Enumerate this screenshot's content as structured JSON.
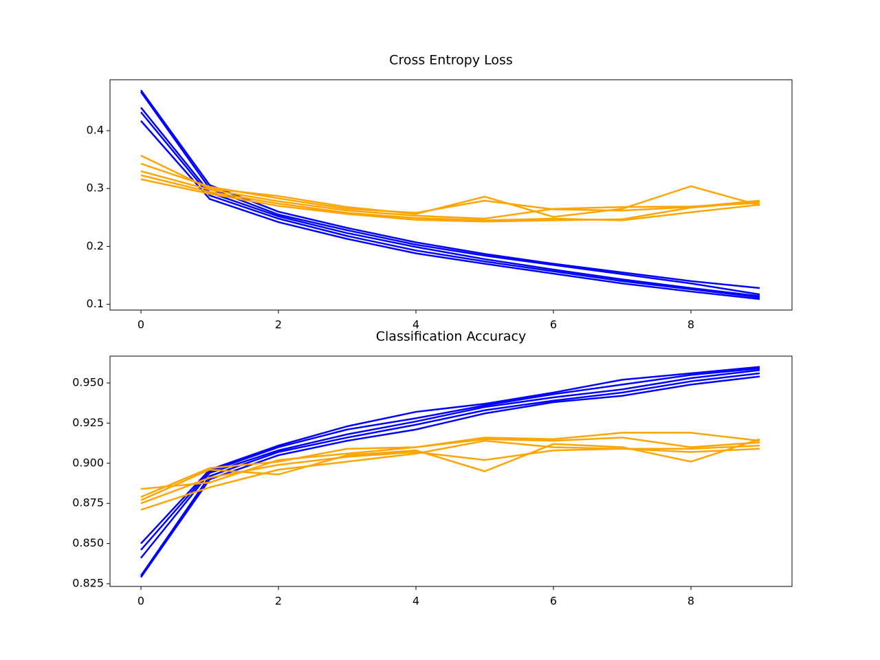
{
  "chart_data": [
    {
      "type": "line",
      "title": "Cross Entropy Loss",
      "x": [
        0,
        1,
        2,
        3,
        4,
        5,
        6,
        7,
        8,
        9
      ],
      "xlim": [
        -0.45,
        9.47
      ],
      "xticks": [
        0,
        2,
        4,
        6,
        8
      ],
      "ylim": [
        0.09,
        0.488
      ],
      "yticks": [
        0.1,
        0.2,
        0.3,
        0.4
      ],
      "series": [
        {
          "color": "#0000ff",
          "values": [
            0.47,
            0.306,
            0.26,
            0.232,
            0.207,
            0.187,
            0.17,
            0.155,
            0.14,
            0.128
          ]
        },
        {
          "color": "#0000ff",
          "values": [
            0.467,
            0.3,
            0.255,
            0.228,
            0.203,
            0.184,
            0.168,
            0.152,
            0.136,
            0.117
          ]
        },
        {
          "color": "#0000ff",
          "values": [
            0.44,
            0.293,
            0.252,
            0.223,
            0.199,
            0.178,
            0.16,
            0.143,
            0.128,
            0.114
          ]
        },
        {
          "color": "#0000ff",
          "values": [
            0.432,
            0.288,
            0.248,
            0.218,
            0.193,
            0.174,
            0.157,
            0.14,
            0.126,
            0.112
          ]
        },
        {
          "color": "#0000ff",
          "values": [
            0.417,
            0.282,
            0.242,
            0.213,
            0.188,
            0.17,
            0.153,
            0.136,
            0.122,
            0.109
          ]
        },
        {
          "color": "#ffa500",
          "values": [
            0.357,
            0.3,
            0.287,
            0.268,
            0.256,
            0.286,
            0.251,
            0.265,
            0.304,
            0.271
          ]
        },
        {
          "color": "#ffa500",
          "values": [
            0.343,
            0.303,
            0.283,
            0.265,
            0.258,
            0.279,
            0.264,
            0.262,
            0.268,
            0.279
          ]
        },
        {
          "color": "#ffa500",
          "values": [
            0.33,
            0.298,
            0.278,
            0.262,
            0.253,
            0.248,
            0.265,
            0.268,
            0.269,
            0.275
          ]
        },
        {
          "color": "#ffa500",
          "values": [
            0.323,
            0.294,
            0.274,
            0.258,
            0.249,
            0.245,
            0.248,
            0.245,
            0.259,
            0.272
          ]
        },
        {
          "color": "#ffa500",
          "values": [
            0.316,
            0.291,
            0.27,
            0.256,
            0.246,
            0.243,
            0.245,
            0.247,
            0.267,
            0.277
          ]
        }
      ]
    },
    {
      "type": "line",
      "title": "Classification Accuracy",
      "x": [
        0,
        1,
        2,
        3,
        4,
        5,
        6,
        7,
        8,
        9
      ],
      "xlim": [
        -0.45,
        9.47
      ],
      "xticks": [
        0,
        2,
        4,
        6,
        8
      ],
      "ylim": [
        0.8233,
        0.9667
      ],
      "yticks": [
        0.825,
        {
          "value": 0.85,
          "label": "0.850"
        },
        0.875,
        {
          "value": 0.9,
          "label": "0.900"
        },
        0.925,
        {
          "value": 0.95,
          "label": "0.950"
        }
      ],
      "series": [
        {
          "color": "#0000ff",
          "values": [
            0.85,
            0.896,
            0.911,
            0.923,
            0.932,
            0.937,
            0.944,
            0.952,
            0.956,
            0.96
          ]
        },
        {
          "color": "#0000ff",
          "values": [
            0.846,
            0.895,
            0.91,
            0.921,
            0.928,
            0.936,
            0.943,
            0.949,
            0.955,
            0.959
          ]
        },
        {
          "color": "#0000ff",
          "values": [
            0.841,
            0.894,
            0.908,
            0.918,
            0.926,
            0.935,
            0.941,
            0.946,
            0.953,
            0.958
          ]
        },
        {
          "color": "#0000ff",
          "values": [
            0.83,
            0.892,
            0.907,
            0.916,
            0.924,
            0.933,
            0.939,
            0.944,
            0.951,
            0.956
          ]
        },
        {
          "color": "#0000ff",
          "values": [
            0.829,
            0.89,
            0.905,
            0.914,
            0.921,
            0.931,
            0.938,
            0.942,
            0.949,
            0.954
          ]
        },
        {
          "color": "#ffa500",
          "values": [
            0.884,
            0.888,
            0.902,
            0.906,
            0.91,
            0.916,
            0.915,
            0.919,
            0.919,
            0.914
          ]
        },
        {
          "color": "#ffa500",
          "values": [
            0.879,
            0.897,
            0.901,
            0.909,
            0.91,
            0.915,
            0.914,
            0.916,
            0.91,
            0.913
          ]
        },
        {
          "color": "#ffa500",
          "values": [
            0.877,
            0.896,
            0.893,
            0.905,
            0.908,
            0.895,
            0.912,
            0.91,
            0.901,
            0.915
          ]
        },
        {
          "color": "#ffa500",
          "values": [
            0.875,
            0.891,
            0.899,
            0.904,
            0.907,
            0.902,
            0.908,
            0.909,
            0.909,
            0.911
          ]
        },
        {
          "color": "#ffa500",
          "values": [
            0.871,
            0.885,
            0.896,
            0.901,
            0.906,
            0.914,
            0.91,
            0.909,
            0.907,
            0.909
          ]
        }
      ]
    }
  ]
}
